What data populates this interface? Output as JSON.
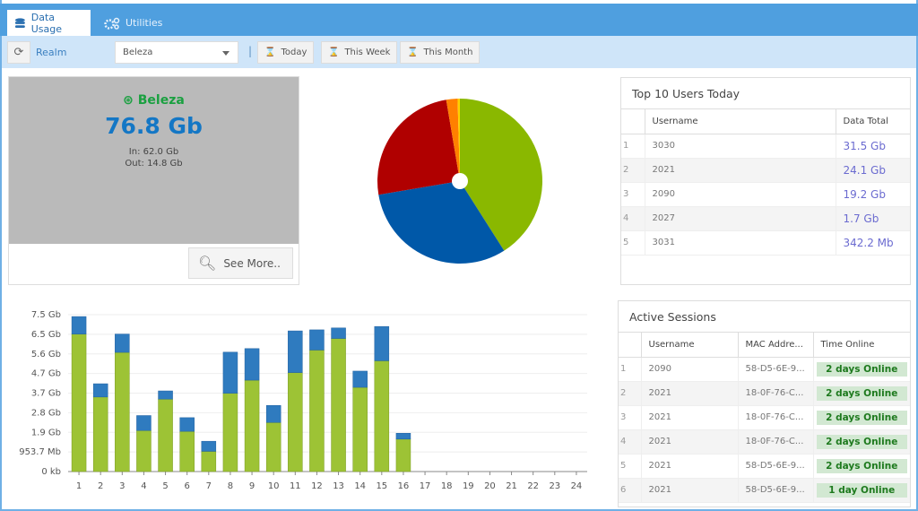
{
  "tabs": [
    {
      "label": "Data Usage",
      "icon": "database-icon"
    },
    {
      "label": "Utilities",
      "icon": "gears-icon"
    }
  ],
  "toolbar": {
    "realm_label": "Realm",
    "realm_value": "Beleza",
    "today": "Today",
    "this_week": "This Week",
    "this_month": "This Month",
    "separator": "|"
  },
  "summary": {
    "realm": "Beleza",
    "total": "76.8 Gb",
    "in": "In: 62.0 Gb",
    "out": "Out: 14.8 Gb",
    "see_more": "See More.."
  },
  "top_users": {
    "title": "Top 10 Users Today",
    "headers": [
      "",
      "Username",
      "Data Total"
    ],
    "rows": [
      [
        "1",
        "3030",
        "31.5 Gb"
      ],
      [
        "2",
        "2021",
        "24.1 Gb"
      ],
      [
        "3",
        "2090",
        "19.2 Gb"
      ],
      [
        "4",
        "2027",
        "1.7 Gb"
      ],
      [
        "5",
        "3031",
        "342.2 Mb"
      ]
    ]
  },
  "sessions": {
    "title": "Active Sessions",
    "headers": [
      "",
      "Username",
      "MAC Addre...",
      "Time Online"
    ],
    "rows": [
      [
        "1",
        "2090",
        "58-D5-6E-9...",
        "2 days Online"
      ],
      [
        "2",
        "2021",
        "18-0F-76-C...",
        "2 days Online"
      ],
      [
        "3",
        "2021",
        "18-0F-76-C...",
        "2 days Online"
      ],
      [
        "4",
        "2021",
        "18-0F-76-C...",
        "2 days Online"
      ],
      [
        "5",
        "2021",
        "58-D5-6E-9...",
        "2 days Online"
      ],
      [
        "6",
        "2021",
        "58-D5-6E-9...",
        "1 day Online"
      ]
    ]
  },
  "chart_data": [
    {
      "type": "pie",
      "labels": [
        "3030",
        "2021",
        "2090",
        "2027",
        "3031"
      ],
      "values": [
        31.5,
        24.1,
        19.2,
        1.7,
        0.342
      ],
      "colors": [
        "#8ab800",
        "#0058a8",
        "#b00000",
        "#ff8000",
        "#ffd000"
      ]
    },
    {
      "type": "bar",
      "stacked": true,
      "categories": [
        "1",
        "2",
        "3",
        "4",
        "5",
        "6",
        "7",
        "8",
        "9",
        "10",
        "11",
        "12",
        "13",
        "14",
        "15",
        "16",
        "17",
        "18",
        "19",
        "20",
        "21",
        "22",
        "23",
        "24"
      ],
      "yticks": [
        "0 kb",
        "953.7 Mb",
        "1.9 Gb",
        "2.8 Gb",
        "3.7 Gb",
        "4.7 Gb",
        "5.6 Gb",
        "6.5 Gb",
        "7.5 Gb"
      ],
      "ylim_gb": [
        0,
        7.45
      ],
      "series": [
        {
          "name": "In",
          "color": "#9dc335",
          "values": [
            6.53,
            3.54,
            5.66,
            1.95,
            3.44,
            1.91,
            0.96,
            3.72,
            4.34,
            2.33,
            4.7,
            5.77,
            6.32,
            4.0,
            5.26,
            1.54,
            0,
            0,
            0,
            0,
            0,
            0,
            0,
            0
          ]
        },
        {
          "name": "Out",
          "color": "#2f7bbf",
          "values": [
            0.83,
            0.63,
            0.87,
            0.71,
            0.39,
            0.65,
            0.48,
            1.95,
            1.5,
            0.81,
            1.98,
            0.96,
            0.5,
            0.77,
            1.63,
            0.28,
            0,
            0,
            0,
            0,
            0,
            0,
            0,
            0
          ]
        }
      ]
    }
  ]
}
